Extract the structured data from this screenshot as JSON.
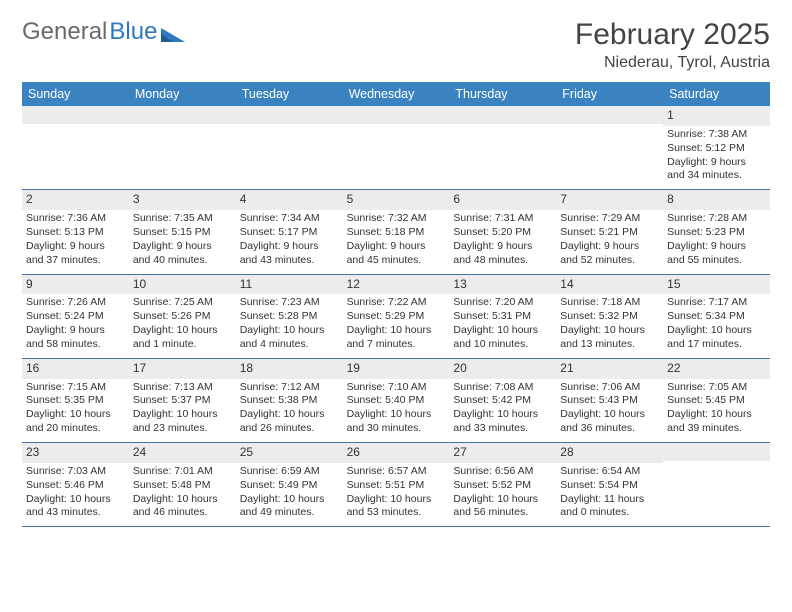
{
  "brand": {
    "part1": "General",
    "part2": "Blue"
  },
  "title": "February 2025",
  "location": "Niederau, Tyrol, Austria",
  "colors": {
    "header_bg": "#3b83c0",
    "header_text": "#ffffff",
    "divider": "#4a74a0",
    "daynum_bg": "#ececec",
    "text": "#333333",
    "brand_gray": "#6a6a6a",
    "brand_blue": "#2f78bd",
    "page_bg": "#ffffff"
  },
  "font": {
    "family": "Arial",
    "title_size": 30,
    "location_size": 16,
    "head_size": 12.5,
    "body_size": 10.5,
    "daynum_size": 12
  },
  "day_names": [
    "Sunday",
    "Monday",
    "Tuesday",
    "Wednesday",
    "Thursday",
    "Friday",
    "Saturday"
  ],
  "weeks": [
    [
      {
        "n": "",
        "lines": [
          "",
          "",
          "",
          ""
        ]
      },
      {
        "n": "",
        "lines": [
          "",
          "",
          "",
          ""
        ]
      },
      {
        "n": "",
        "lines": [
          "",
          "",
          "",
          ""
        ]
      },
      {
        "n": "",
        "lines": [
          "",
          "",
          "",
          ""
        ]
      },
      {
        "n": "",
        "lines": [
          "",
          "",
          "",
          ""
        ]
      },
      {
        "n": "",
        "lines": [
          "",
          "",
          "",
          ""
        ]
      },
      {
        "n": "1",
        "lines": [
          "Sunrise: 7:38 AM",
          "Sunset: 5:12 PM",
          "Daylight: 9 hours",
          "and 34 minutes."
        ]
      }
    ],
    [
      {
        "n": "2",
        "lines": [
          "Sunrise: 7:36 AM",
          "Sunset: 5:13 PM",
          "Daylight: 9 hours",
          "and 37 minutes."
        ]
      },
      {
        "n": "3",
        "lines": [
          "Sunrise: 7:35 AM",
          "Sunset: 5:15 PM",
          "Daylight: 9 hours",
          "and 40 minutes."
        ]
      },
      {
        "n": "4",
        "lines": [
          "Sunrise: 7:34 AM",
          "Sunset: 5:17 PM",
          "Daylight: 9 hours",
          "and 43 minutes."
        ]
      },
      {
        "n": "5",
        "lines": [
          "Sunrise: 7:32 AM",
          "Sunset: 5:18 PM",
          "Daylight: 9 hours",
          "and 45 minutes."
        ]
      },
      {
        "n": "6",
        "lines": [
          "Sunrise: 7:31 AM",
          "Sunset: 5:20 PM",
          "Daylight: 9 hours",
          "and 48 minutes."
        ]
      },
      {
        "n": "7",
        "lines": [
          "Sunrise: 7:29 AM",
          "Sunset: 5:21 PM",
          "Daylight: 9 hours",
          "and 52 minutes."
        ]
      },
      {
        "n": "8",
        "lines": [
          "Sunrise: 7:28 AM",
          "Sunset: 5:23 PM",
          "Daylight: 9 hours",
          "and 55 minutes."
        ]
      }
    ],
    [
      {
        "n": "9",
        "lines": [
          "Sunrise: 7:26 AM",
          "Sunset: 5:24 PM",
          "Daylight: 9 hours",
          "and 58 minutes."
        ]
      },
      {
        "n": "10",
        "lines": [
          "Sunrise: 7:25 AM",
          "Sunset: 5:26 PM",
          "Daylight: 10 hours",
          "and 1 minute."
        ]
      },
      {
        "n": "11",
        "lines": [
          "Sunrise: 7:23 AM",
          "Sunset: 5:28 PM",
          "Daylight: 10 hours",
          "and 4 minutes."
        ]
      },
      {
        "n": "12",
        "lines": [
          "Sunrise: 7:22 AM",
          "Sunset: 5:29 PM",
          "Daylight: 10 hours",
          "and 7 minutes."
        ]
      },
      {
        "n": "13",
        "lines": [
          "Sunrise: 7:20 AM",
          "Sunset: 5:31 PM",
          "Daylight: 10 hours",
          "and 10 minutes."
        ]
      },
      {
        "n": "14",
        "lines": [
          "Sunrise: 7:18 AM",
          "Sunset: 5:32 PM",
          "Daylight: 10 hours",
          "and 13 minutes."
        ]
      },
      {
        "n": "15",
        "lines": [
          "Sunrise: 7:17 AM",
          "Sunset: 5:34 PM",
          "Daylight: 10 hours",
          "and 17 minutes."
        ]
      }
    ],
    [
      {
        "n": "16",
        "lines": [
          "Sunrise: 7:15 AM",
          "Sunset: 5:35 PM",
          "Daylight: 10 hours",
          "and 20 minutes."
        ]
      },
      {
        "n": "17",
        "lines": [
          "Sunrise: 7:13 AM",
          "Sunset: 5:37 PM",
          "Daylight: 10 hours",
          "and 23 minutes."
        ]
      },
      {
        "n": "18",
        "lines": [
          "Sunrise: 7:12 AM",
          "Sunset: 5:38 PM",
          "Daylight: 10 hours",
          "and 26 minutes."
        ]
      },
      {
        "n": "19",
        "lines": [
          "Sunrise: 7:10 AM",
          "Sunset: 5:40 PM",
          "Daylight: 10 hours",
          "and 30 minutes."
        ]
      },
      {
        "n": "20",
        "lines": [
          "Sunrise: 7:08 AM",
          "Sunset: 5:42 PM",
          "Daylight: 10 hours",
          "and 33 minutes."
        ]
      },
      {
        "n": "21",
        "lines": [
          "Sunrise: 7:06 AM",
          "Sunset: 5:43 PM",
          "Daylight: 10 hours",
          "and 36 minutes."
        ]
      },
      {
        "n": "22",
        "lines": [
          "Sunrise: 7:05 AM",
          "Sunset: 5:45 PM",
          "Daylight: 10 hours",
          "and 39 minutes."
        ]
      }
    ],
    [
      {
        "n": "23",
        "lines": [
          "Sunrise: 7:03 AM",
          "Sunset: 5:46 PM",
          "Daylight: 10 hours",
          "and 43 minutes."
        ]
      },
      {
        "n": "24",
        "lines": [
          "Sunrise: 7:01 AM",
          "Sunset: 5:48 PM",
          "Daylight: 10 hours",
          "and 46 minutes."
        ]
      },
      {
        "n": "25",
        "lines": [
          "Sunrise: 6:59 AM",
          "Sunset: 5:49 PM",
          "Daylight: 10 hours",
          "and 49 minutes."
        ]
      },
      {
        "n": "26",
        "lines": [
          "Sunrise: 6:57 AM",
          "Sunset: 5:51 PM",
          "Daylight: 10 hours",
          "and 53 minutes."
        ]
      },
      {
        "n": "27",
        "lines": [
          "Sunrise: 6:56 AM",
          "Sunset: 5:52 PM",
          "Daylight: 10 hours",
          "and 56 minutes."
        ]
      },
      {
        "n": "28",
        "lines": [
          "Sunrise: 6:54 AM",
          "Sunset: 5:54 PM",
          "Daylight: 11 hours",
          "and 0 minutes."
        ]
      },
      {
        "n": "",
        "lines": [
          "",
          "",
          "",
          ""
        ]
      }
    ]
  ]
}
